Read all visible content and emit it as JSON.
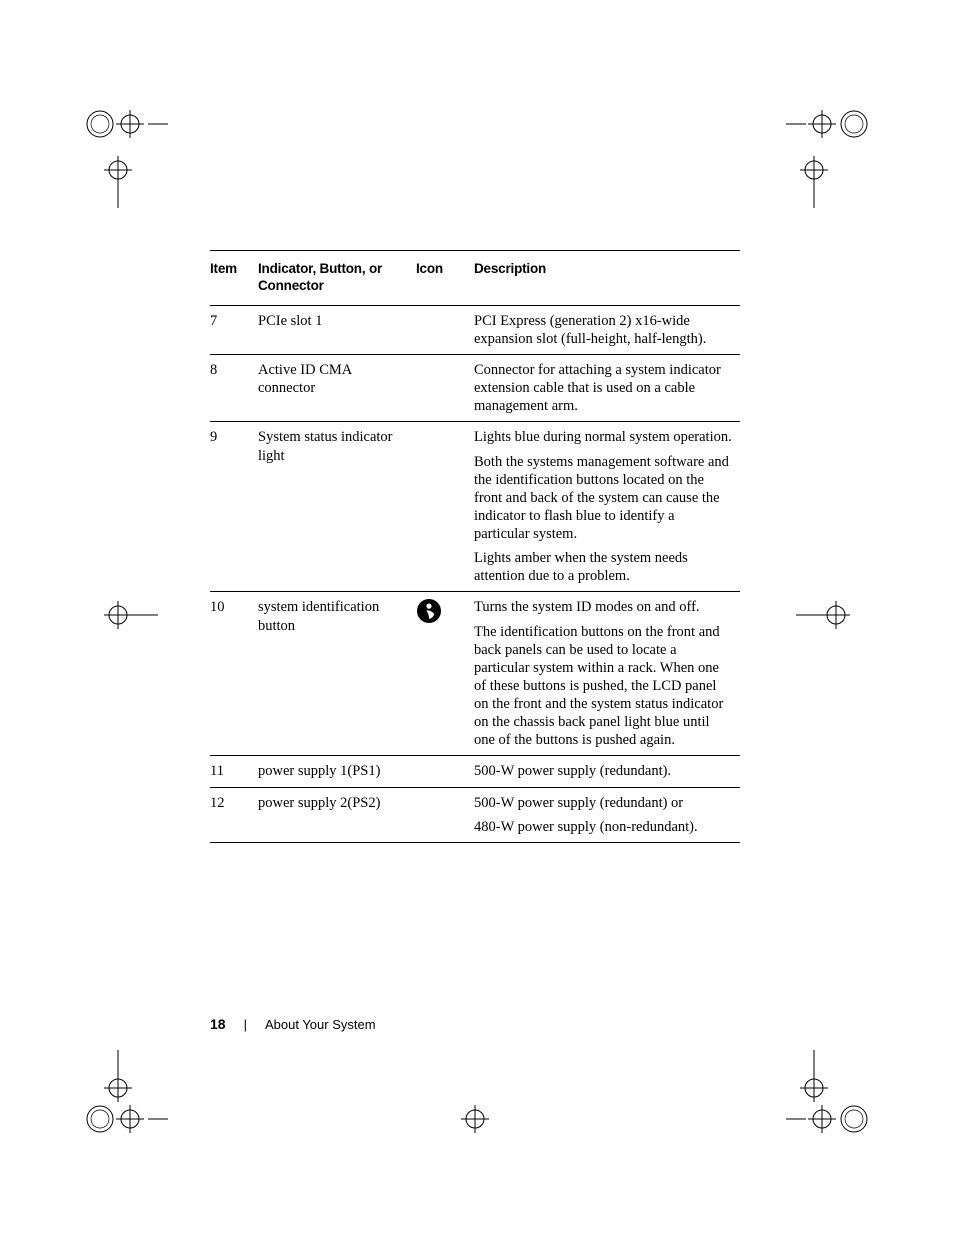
{
  "page": {
    "number": "18",
    "section_title": "About Your System"
  },
  "table": {
    "headers": {
      "item": "Item",
      "indicator": "Indicator, Button, or Connector",
      "icon": "Icon",
      "description": "Description"
    },
    "rows": [
      {
        "item": "7",
        "indicator": "PCIe slot 1",
        "icon": null,
        "description": [
          "PCI Express (generation 2) x16-wide expansion slot (full-height, half-length)."
        ]
      },
      {
        "item": "8",
        "indicator": "Active ID CMA connector",
        "icon": null,
        "description": [
          "Connector for attaching a system indicator extension cable that is used on a cable management arm."
        ]
      },
      {
        "item": "9",
        "indicator": "System status indicator light",
        "icon": null,
        "description": [
          "Lights blue during normal system operation.",
          "Both the systems management software and the identification buttons located on the front and back of the system can cause the indicator to flash blue to identify a particular system.",
          "Lights amber when the system needs attention due to a problem."
        ]
      },
      {
        "item": "10",
        "indicator": "system identification button",
        "icon": "id-icon",
        "description": [
          "Turns the system ID modes on and off.",
          "The identification buttons on the front and back panels can be used to locate a particular system within a rack. When one of these buttons is pushed, the LCD panel on the front and the system status indicator on the chassis back panel light blue until one of the buttons is pushed again."
        ]
      },
      {
        "item": "11",
        "indicator": "power supply 1(PS1)",
        "icon": null,
        "description": [
          "500-W power supply (redundant)."
        ]
      },
      {
        "item": "12",
        "indicator": "power supply 2(PS2)",
        "icon": null,
        "description": [
          "500-W power supply (redundant) or",
          "480-W power supply (non-redundant)."
        ]
      }
    ]
  },
  "colors": {
    "text": "#000000",
    "rule": "#000000",
    "background": "#ffffff"
  }
}
